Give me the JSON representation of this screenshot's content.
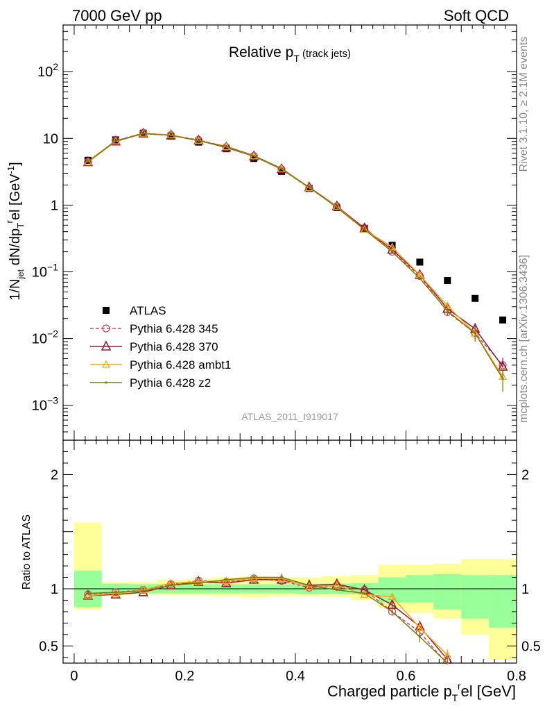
{
  "header": {
    "left": "7000 GeV pp",
    "right": "Soft QCD"
  },
  "side_labels": {
    "rivet": "Rivet 3.1.10, ≥ 2.1M events",
    "mcplots": "mcplots.cern.ch [arXiv:1306.3436]"
  },
  "analysis_ref": "ATLAS_2011_I919017",
  "chart_data": [
    {
      "type": "scatter",
      "panel": "main",
      "title": "Relative p_T (track jets)",
      "ylabel": "1/N_jet dN/dp_T^rel [GeV^-1]",
      "yscale": "log",
      "xlim": [
        -0.02,
        0.8
      ],
      "ylim": [
        0.0003,
        500
      ],
      "x_ticks": [
        0,
        0.2,
        0.4,
        0.6,
        0.8
      ],
      "y_ticks": [
        {
          "v": 0.001,
          "label": "10^-3"
        },
        {
          "v": 0.01,
          "label": "10^-2"
        },
        {
          "v": 0.1,
          "label": "10^-1"
        },
        {
          "v": 1,
          "label": "1"
        },
        {
          "v": 10,
          "label": "10"
        },
        {
          "v": 100,
          "label": "10^2"
        }
      ],
      "x": [
        0.025,
        0.075,
        0.125,
        0.175,
        0.225,
        0.275,
        0.325,
        0.375,
        0.425,
        0.475,
        0.525,
        0.575,
        0.625,
        0.675,
        0.725,
        0.775
      ],
      "legend_position": "lower-left",
      "series": [
        {
          "name": "ATLAS",
          "kind": "data",
          "color": "#000000",
          "values": [
            4.7,
            9.5,
            12.0,
            10.8,
            8.8,
            7.0,
            5.0,
            3.2,
            1.78,
            0.92,
            0.45,
            0.25,
            0.14,
            0.074,
            0.04,
            0.019
          ],
          "errors": [
            0.2,
            0.2,
            0.2,
            0.2,
            0.2,
            0.15,
            0.1,
            0.07,
            0.04,
            0.02,
            0.01,
            0.008,
            0.005,
            0.003,
            0.002,
            0.001
          ]
        },
        {
          "name": "Pythia 6.428 345",
          "kind": "mc",
          "color": "#bd4f6a",
          "dash": "5,3",
          "marker": "circle",
          "values": [
            4.45,
            9.2,
            12.0,
            11.2,
            9.5,
            7.4,
            5.45,
            3.45,
            1.8,
            0.96,
            0.45,
            0.2,
            0.087,
            0.025,
            0.012,
            0.004
          ],
          "errors": [
            0,
            0,
            0,
            0,
            0,
            0,
            0,
            0,
            0,
            0,
            0,
            0.008,
            0.004,
            0.003,
            0.002,
            0.0012
          ]
        },
        {
          "name": "Pythia 6.428 370",
          "kind": "mc",
          "color": "#9a1c2d",
          "dash": "",
          "marker": "triangle",
          "values": [
            4.4,
            9.0,
            11.8,
            11.1,
            9.3,
            7.3,
            5.4,
            3.45,
            1.85,
            0.96,
            0.45,
            0.215,
            0.09,
            0.028,
            0.014,
            0.0038
          ],
          "errors": [
            0,
            0,
            0,
            0,
            0,
            0,
            0,
            0,
            0,
            0,
            0,
            0.008,
            0.004,
            0.003,
            0.003,
            0.0012
          ]
        },
        {
          "name": "Pythia 6.428 ambt1",
          "kind": "mc",
          "color": "#f2a51a",
          "dash": "",
          "marker": "triangle-open",
          "values": [
            4.4,
            9.1,
            11.9,
            11.3,
            9.3,
            7.5,
            5.45,
            3.5,
            1.82,
            0.95,
            0.43,
            0.235,
            0.09,
            0.031,
            0.012,
            0.0027
          ],
          "errors": [
            0,
            0,
            0,
            0,
            0,
            0,
            0,
            0,
            0,
            0,
            0,
            0.008,
            0.004,
            0.003,
            0.003,
            0.001
          ]
        },
        {
          "name": "Pythia 6.428 z2",
          "kind": "mc",
          "color": "#7a7a10",
          "dash": "",
          "marker": "dot",
          "values": [
            4.5,
            9.2,
            11.8,
            11.1,
            9.2,
            7.6,
            5.5,
            3.55,
            1.84,
            0.92,
            0.43,
            0.2,
            0.08,
            0.026,
            0.012,
            0.0025
          ],
          "errors": [
            0,
            0,
            0,
            0,
            0,
            0,
            0,
            0,
            0,
            0,
            0,
            0.008,
            0.004,
            0.003,
            0.003,
            0.0009
          ]
        }
      ]
    },
    {
      "type": "line",
      "panel": "ratio",
      "xlabel": "Charged particle p_T^rel [GeV]",
      "ylabel": "Ratio to ATLAS",
      "xlim": [
        -0.02,
        0.8
      ],
      "ylim": [
        0.35,
        2.3
      ],
      "y_ticks": [
        0.5,
        1,
        2
      ],
      "x_ticks": [
        0,
        0.2,
        0.4,
        0.6,
        0.8
      ],
      "bins": [
        0,
        0.05,
        0.1,
        0.15,
        0.2,
        0.25,
        0.3,
        0.35,
        0.4,
        0.45,
        0.5,
        0.55,
        0.6,
        0.65,
        0.7,
        0.75,
        0.8
      ],
      "band_inner": [
        [
          0.84,
          1.16
        ],
        [
          0.955,
          1.045
        ],
        [
          0.96,
          1.04
        ],
        [
          0.96,
          1.04
        ],
        [
          0.96,
          1.04
        ],
        [
          0.96,
          1.04
        ],
        [
          0.96,
          1.04
        ],
        [
          0.96,
          1.04
        ],
        [
          0.955,
          1.045
        ],
        [
          0.955,
          1.045
        ],
        [
          0.95,
          1.05
        ],
        [
          0.88,
          1.1
        ],
        [
          0.88,
          1.12
        ],
        [
          0.82,
          1.13
        ],
        [
          0.74,
          1.12
        ],
        [
          0.66,
          1.12
        ]
      ],
      "band_outer": [
        [
          0.82,
          1.58
        ],
        [
          0.945,
          1.06
        ],
        [
          0.95,
          1.06
        ],
        [
          0.945,
          1.08
        ],
        [
          0.94,
          1.09
        ],
        [
          0.935,
          1.1
        ],
        [
          0.925,
          1.11
        ],
        [
          0.935,
          1.1
        ],
        [
          0.935,
          1.1
        ],
        [
          0.93,
          1.11
        ],
        [
          0.9,
          1.12
        ],
        [
          0.83,
          1.21
        ],
        [
          0.79,
          1.21
        ],
        [
          0.74,
          1.22
        ],
        [
          0.6,
          1.26
        ],
        [
          0.38,
          1.26
        ]
      ],
      "x": [
        0.025,
        0.075,
        0.125,
        0.175,
        0.225,
        0.275,
        0.325,
        0.375,
        0.425,
        0.475,
        0.525,
        0.575,
        0.625,
        0.675
      ],
      "series": [
        {
          "name": "Pythia 6.428 345",
          "color": "#bd4f6a",
          "dash": "5,3",
          "marker": "circle",
          "values": [
            0.95,
            0.97,
            0.99,
            1.04,
            1.07,
            1.06,
            1.09,
            1.07,
            1.01,
            1.03,
            0.99,
            0.8,
            0.62,
            0.34
          ],
          "errors": [
            0,
            0,
            0,
            0,
            0,
            0,
            0,
            0,
            0,
            0,
            0,
            0.03,
            0.05,
            0.05
          ]
        },
        {
          "name": "Pythia 6.428 370",
          "color": "#9a1c2d",
          "dash": "",
          "marker": "triangle",
          "values": [
            0.94,
            0.95,
            0.97,
            1.03,
            1.06,
            1.05,
            1.08,
            1.08,
            1.03,
            1.04,
            0.99,
            0.86,
            0.67,
            0.38
          ],
          "errors": [
            0,
            0,
            0,
            0,
            0,
            0,
            0,
            0,
            0,
            0,
            0,
            0.03,
            0.05,
            0.05
          ]
        },
        {
          "name": "Pythia 6.428 ambt1",
          "color": "#f2a51a",
          "dash": "",
          "marker": "triangle-open",
          "values": [
            0.94,
            0.96,
            0.99,
            1.05,
            1.06,
            1.07,
            1.09,
            1.09,
            1.02,
            1.03,
            0.95,
            0.93,
            0.66,
            0.42
          ],
          "errors": [
            0,
            0,
            0,
            0,
            0,
            0,
            0,
            0,
            0,
            0,
            0,
            0.03,
            0.05,
            0.05
          ]
        },
        {
          "name": "Pythia 6.428 z2",
          "color": "#7a7a10",
          "dash": "",
          "marker": "dot",
          "values": [
            0.96,
            0.97,
            0.98,
            1.03,
            1.05,
            1.08,
            1.1,
            1.1,
            1.03,
            0.99,
            0.96,
            0.8,
            0.58,
            0.35
          ],
          "errors": [
            0,
            0,
            0,
            0,
            0,
            0,
            0,
            0,
            0,
            0,
            0,
            0.03,
            0.05,
            0.05
          ]
        }
      ]
    }
  ]
}
